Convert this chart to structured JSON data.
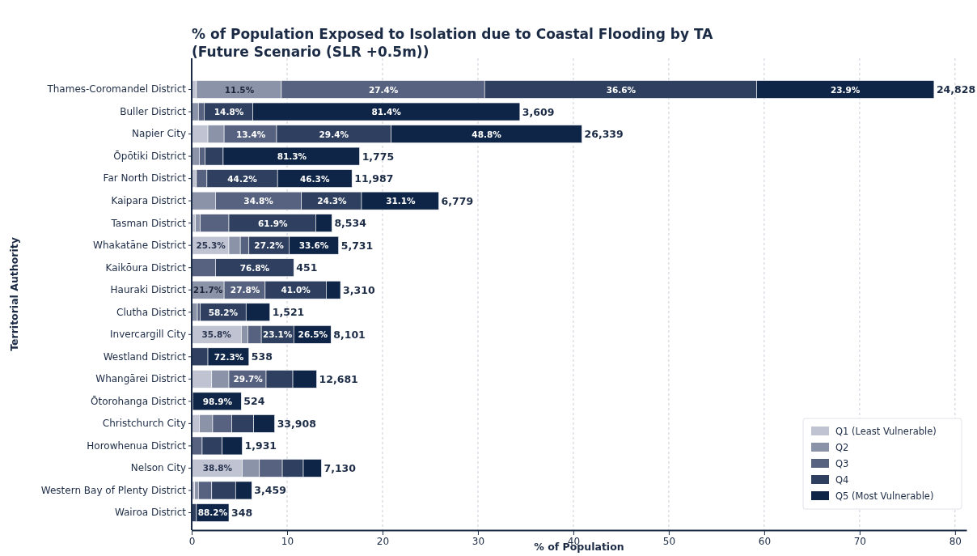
{
  "chart_data": {
    "type": "bar",
    "orientation": "horizontal",
    "stacked": true,
    "title": "% of Population Exposed to Isolation due to Coastal Flooding by TA\n(Future Scenario (SLR +0.5m))",
    "xlabel": "% of Population",
    "ylabel": "Territorial Authority",
    "categories": [
      "Thames-Coromandel District",
      "Buller District",
      "Napier City",
      "Ōpōtiki District",
      "Far North District",
      "Kaipara District",
      "Tasman District",
      "Whakatāne District",
      "Kaikōura District",
      "Hauraki District",
      "Clutha District",
      "Invercargill City",
      "Westland District",
      "Whangārei District",
      "Ōtorohanga District",
      "Christchurch City",
      "Horowhenua District",
      "Nelson City",
      "Western Bay of Plenty District",
      "Wairoa District"
    ],
    "series": [
      {
        "name": "Q1 (Least Vulnerable)",
        "color": "#c0c4d2",
        "values": [
          0.5,
          0,
          1.7,
          0,
          0.5,
          0,
          0.4,
          3.9,
          0,
          0,
          0,
          5.2,
          0,
          2.1,
          0,
          0.8,
          0,
          5.3,
          0.3,
          0
        ]
      },
      {
        "name": "Q2",
        "color": "#8a93a8",
        "values": [
          8.9,
          0.7,
          1.7,
          0.8,
          0,
          2.5,
          0.5,
          1.2,
          0,
          3.4,
          0.6,
          0.7,
          0,
          1.8,
          0,
          1.4,
          0,
          1.8,
          0.4,
          0
        ]
      },
      {
        "name": "Q3",
        "color": "#56627f",
        "values": [
          21.3,
          0.6,
          5.5,
          0.6,
          1.1,
          9.0,
          3.0,
          0.9,
          2.5,
          4.3,
          0.3,
          1.4,
          0,
          3.9,
          0,
          2.0,
          1.1,
          2.4,
          1.4,
          0
        ]
      },
      {
        "name": "Q4",
        "color": "#2e3f60",
        "values": [
          28.5,
          5.1,
          12.0,
          1.9,
          7.4,
          6.3,
          9.1,
          4.2,
          8.2,
          6.4,
          4.8,
          3.4,
          1.7,
          2.8,
          0.1,
          2.3,
          2.1,
          2.2,
          2.5,
          0.5
        ]
      },
      {
        "name": "Q5 (Most Vulnerable)",
        "color": "#0f2548",
        "values": [
          18.6,
          28.0,
          20.0,
          14.3,
          7.8,
          8.1,
          1.7,
          5.2,
          0,
          1.5,
          2.5,
          3.9,
          4.3,
          2.5,
          5.1,
          2.2,
          2.1,
          1.9,
          1.7,
          3.4
        ]
      }
    ],
    "annotations": [
      {
        "text": "11.5%",
        "x": 5.0,
        "y": "Thames-Coromandel District"
      },
      {
        "text": "27.4%",
        "x": 20.1,
        "y": "Thames-Coromandel District"
      },
      {
        "text": "36.6%",
        "x": 45.0,
        "y": "Thames-Coromandel District"
      },
      {
        "text": "23.9%",
        "x": 68.5,
        "y": "Thames-Coromandel District"
      },
      {
        "text": "14.8%",
        "x": 3.9,
        "y": "Buller District"
      },
      {
        "text": "81.4%",
        "x": 20.4,
        "y": "Buller District"
      },
      {
        "text": "13.4%",
        "x": 6.2,
        "y": "Napier City"
      },
      {
        "text": "29.4%",
        "x": 14.9,
        "y": "Napier City"
      },
      {
        "text": "48.8%",
        "x": 30.9,
        "y": "Napier City"
      },
      {
        "text": "81.3%",
        "x": 10.5,
        "y": "Ōpōtiki District"
      },
      {
        "text": "44.2%",
        "x": 5.3,
        "y": "Far North District"
      },
      {
        "text": "46.3%",
        "x": 12.9,
        "y": "Far North District"
      },
      {
        "text": "34.8%",
        "x": 7.0,
        "y": "Kaipara District"
      },
      {
        "text": "24.3%",
        "x": 14.7,
        "y": "Kaipara District"
      },
      {
        "text": "31.1%",
        "x": 21.9,
        "y": "Kaipara District"
      },
      {
        "text": "61.9%",
        "x": 8.5,
        "y": "Tasman District"
      },
      {
        "text": "25.3%",
        "x": 2.0,
        "y": "Whakatāne District"
      },
      {
        "text": "27.2%",
        "x": 8.1,
        "y": "Whakatāne District"
      },
      {
        "text": "33.6%",
        "x": 12.8,
        "y": "Whakatāne District"
      },
      {
        "text": "76.8%",
        "x": 6.6,
        "y": "Kaikōura District"
      },
      {
        "text": "21.7%",
        "x": 1.7,
        "y": "Hauraki District"
      },
      {
        "text": "27.8%",
        "x": 5.6,
        "y": "Hauraki District"
      },
      {
        "text": "41.0%",
        "x": 10.9,
        "y": "Hauraki District"
      },
      {
        "text": "58.2%",
        "x": 3.3,
        "y": "Clutha District"
      },
      {
        "text": "35.8%",
        "x": 2.6,
        "y": "Invercargill City"
      },
      {
        "text": "23.1%",
        "x": 9.0,
        "y": "Invercargill City"
      },
      {
        "text": "26.5%",
        "x": 12.7,
        "y": "Invercargill City"
      },
      {
        "text": "72.3%",
        "x": 3.9,
        "y": "Westland District"
      },
      {
        "text": "29.7%",
        "x": 5.9,
        "y": "Whangārei District"
      },
      {
        "text": "98.9%",
        "x": 2.7,
        "y": "Ōtorohanga District"
      },
      {
        "text": "38.8%",
        "x": 2.7,
        "y": "Nelson City"
      },
      {
        "text": "88.2%",
        "x": 2.2,
        "y": "Wairoa District"
      },
      {
        "text": "24,828",
        "x": 77.8,
        "y": "Thames-Coromandel District"
      },
      {
        "text": "3,609",
        "x": 34.4,
        "y": "Buller District"
      },
      {
        "text": "26,339",
        "x": 40.9,
        "y": "Napier City"
      },
      {
        "text": "1,775",
        "x": 17.6,
        "y": "Ōpōtiki District"
      },
      {
        "text": "11,987",
        "x": 16.8,
        "y": "Far North District"
      },
      {
        "text": "6,779",
        "x": 25.9,
        "y": "Kaipara District"
      },
      {
        "text": "8,534",
        "x": 14.7,
        "y": "Tasman District"
      },
      {
        "text": "5,731",
        "x": 15.4,
        "y": "Whakatāne District"
      },
      {
        "text": "451",
        "x": 10.7,
        "y": "Kaikōura District"
      },
      {
        "text": "3,310",
        "x": 15.6,
        "y": "Hauraki District"
      },
      {
        "text": "1,521",
        "x": 8.2,
        "y": "Clutha District"
      },
      {
        "text": "8,101",
        "x": 14.6,
        "y": "Invercargill City"
      },
      {
        "text": "538",
        "x": 6.0,
        "y": "Westland District"
      },
      {
        "text": "12,681",
        "x": 13.1,
        "y": "Whangārei District"
      },
      {
        "text": "524",
        "x": 5.2,
        "y": "Ōtorohanga District"
      },
      {
        "text": "33,908",
        "x": 8.7,
        "y": "Christchurch City"
      },
      {
        "text": "1,931",
        "x": 5.3,
        "y": "Horowhenua District"
      },
      {
        "text": "7,130",
        "x": 13.6,
        "y": "Nelson City"
      },
      {
        "text": "3,459",
        "x": 6.3,
        "y": "Western Bay of Plenty District"
      },
      {
        "text": "348",
        "x": 3.9,
        "y": "Wairoa District"
      }
    ],
    "xlim": [
      0,
      81.2
    ],
    "xticks": [
      0,
      10,
      20,
      30,
      40,
      50,
      60,
      70,
      80
    ],
    "grid": "x",
    "legend": "bottom right"
  }
}
